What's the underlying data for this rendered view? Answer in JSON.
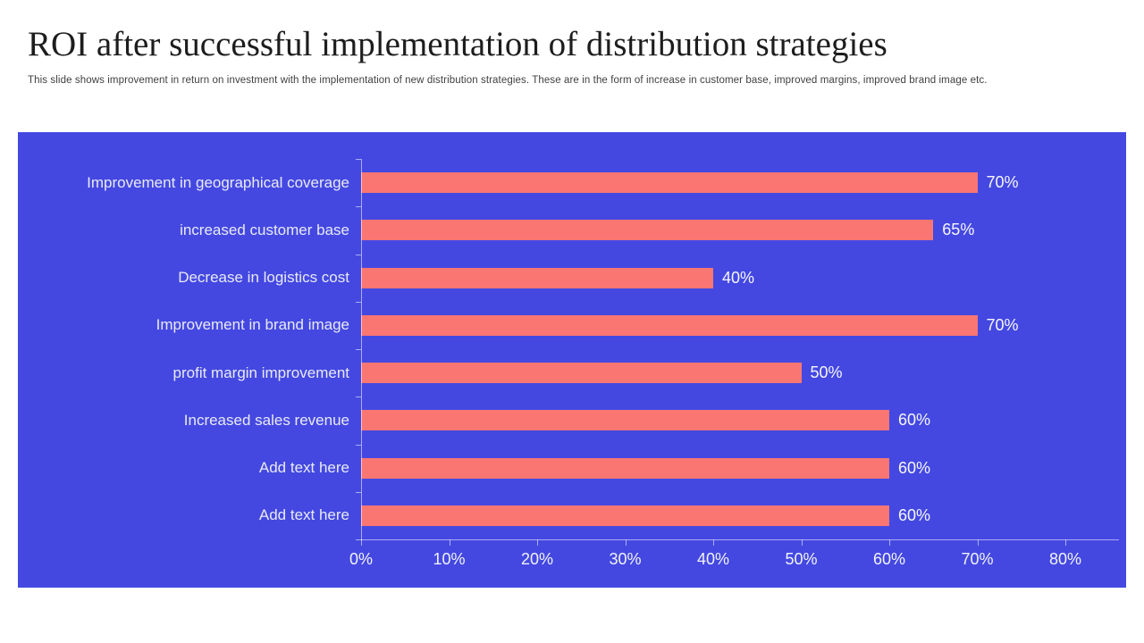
{
  "slide": {
    "title": "ROI after successful implementation of distribution strategies",
    "subtitle": "This slide shows improvement in return on investment with the implementation of new distribution strategies. These are in the form of increase in customer base, improved margins, improved brand image etc."
  },
  "colors": {
    "slide_bg": "#ffffff",
    "title_text": "#1d1d1d",
    "subtitle_text": "#404040",
    "panel_bg": "#4448E1",
    "bar_fill": "#F97672",
    "axis_line": "rgba(255,255,255,0.55)",
    "category_text": "#E9EAF4",
    "value_text": "#F7F7FC",
    "tick_text": "#F2F3FA"
  },
  "chart_data": {
    "type": "bar",
    "orientation": "horizontal",
    "title": "",
    "xlabel": "",
    "ylabel": "",
    "categories": [
      "Improvement in geographical coverage",
      "increased customer base",
      "Decrease in logistics cost",
      "Improvement in brand image",
      "profit margin improvement",
      "Increased sales revenue",
      "Add text here",
      "Add text here"
    ],
    "values": [
      70,
      65,
      40,
      70,
      50,
      60,
      60,
      60
    ],
    "value_labels": [
      "70%",
      "65%",
      "40%",
      "70%",
      "50%",
      "60%",
      "60%",
      "60%"
    ],
    "x_tick_labels": [
      "0%",
      "10%",
      "20%",
      "30%",
      "40%",
      "50%",
      "60%",
      "70%",
      "80%"
    ],
    "xlim": [
      0,
      80
    ],
    "x_tick_step": 10,
    "grid": false,
    "legend": null
  }
}
